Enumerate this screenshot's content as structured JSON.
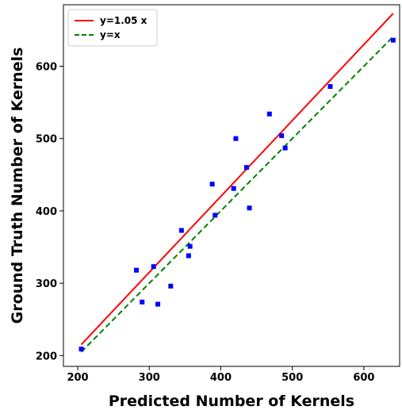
{
  "chart_data": {
    "type": "scatter",
    "xlabel": "Predicted Number of Kernels",
    "ylabel": "Ground Truth Number of Kernels",
    "xlim": [
      180,
      650
    ],
    "ylim": [
      185,
      685
    ],
    "xticks": [
      200,
      300,
      400,
      500,
      600
    ],
    "yticks": [
      200,
      300,
      400,
      500,
      600
    ],
    "grid": false,
    "legend_position": "top-left",
    "series": [
      {
        "kind": "scatter",
        "color": "#0000ff",
        "marker": "square",
        "points": [
          [
            205,
            209
          ],
          [
            282,
            318
          ],
          [
            290,
            274
          ],
          [
            306,
            323
          ],
          [
            312,
            271
          ],
          [
            330,
            296
          ],
          [
            345,
            373
          ],
          [
            355,
            338
          ],
          [
            357,
            351
          ],
          [
            388,
            437
          ],
          [
            392,
            394
          ],
          [
            418,
            431
          ],
          [
            421,
            500
          ],
          [
            436,
            460
          ],
          [
            440,
            404
          ],
          [
            468,
            534
          ],
          [
            485,
            504
          ],
          [
            490,
            487
          ],
          [
            553,
            572
          ],
          [
            641,
            636
          ]
        ]
      },
      {
        "kind": "line",
        "name": "y=1.05 x",
        "color": "#ff0000",
        "dash": "solid",
        "x": [
          205,
          641
        ],
        "slope": 1.05
      },
      {
        "kind": "line",
        "name": "y=x",
        "color": "#008000",
        "dash": "dashed",
        "x": [
          205,
          641
        ],
        "slope": 1.0
      }
    ]
  }
}
